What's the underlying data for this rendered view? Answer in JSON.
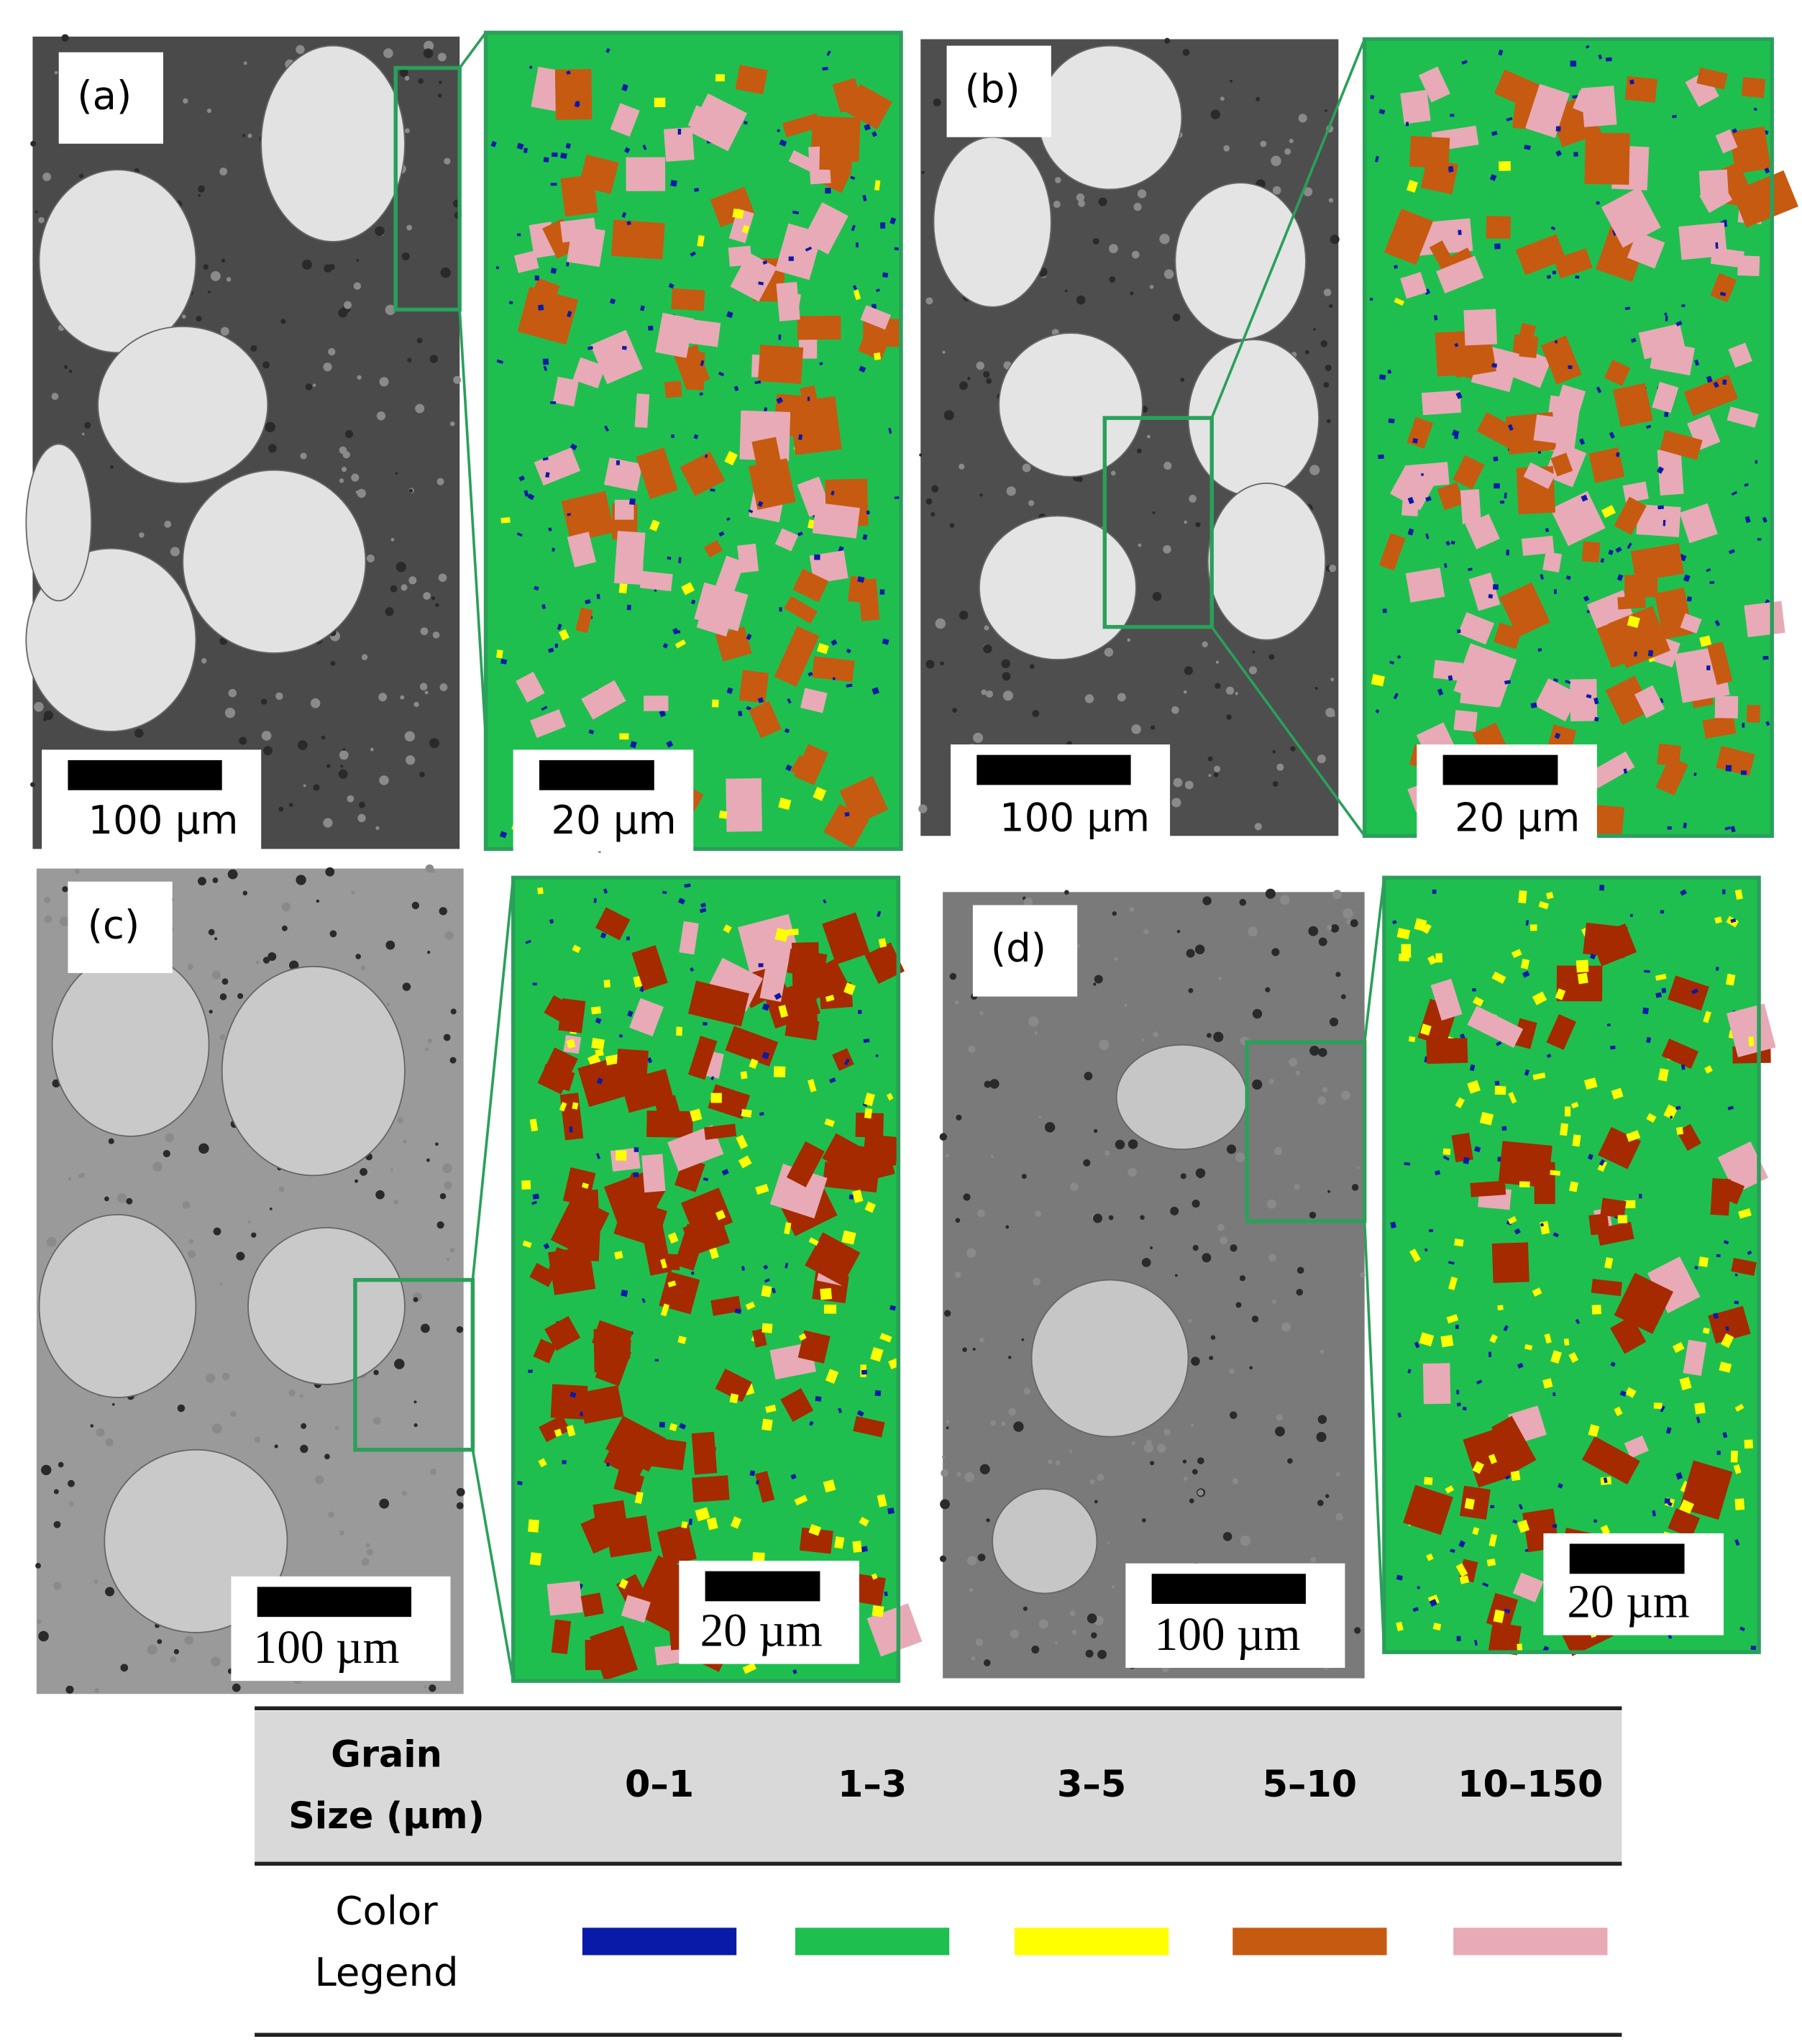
{
  "panels": [
    {
      "label": "(a)",
      "overview_scale": "100 µm",
      "zoom_scale": "20 µm"
    },
    {
      "label": "(b)",
      "overview_scale": "100 µm",
      "zoom_scale": "20 µm"
    },
    {
      "label": "(c)",
      "overview_scale": "100 µm",
      "zoom_scale": "20 µm"
    },
    {
      "label": "(d)",
      "overview_scale": "100 µm",
      "zoom_scale": "20 µm"
    }
  ],
  "legend": {
    "row_label": [
      "Grain",
      "Size (µm)"
    ],
    "color_label": [
      "Color",
      "Legend"
    ],
    "ranges": [
      {
        "label": "0–1",
        "color": "#0a1aa8"
      },
      {
        "label": "1–3",
        "color": "#1fbf4f"
      },
      {
        "label": "3–5",
        "color": "#ffff00"
      },
      {
        "label": "5–10",
        "color": "#c65a11"
      },
      {
        "label": "10–150",
        "color": "#e8aab6"
      }
    ]
  }
}
